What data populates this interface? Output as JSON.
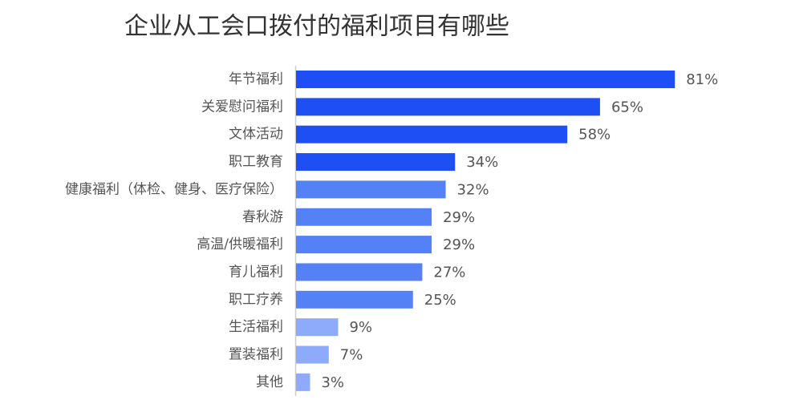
{
  "chart_data": {
    "type": "bar",
    "orientation": "horizontal",
    "title": "企业从工会口拨付的福利项目有哪些",
    "categories": [
      "年节福利",
      "关爱慰问福利",
      "文体活动",
      "职工教育",
      "健康福利（体检、健身、医疗保险）",
      "春秋游",
      "高温/供暖福利",
      "育儿福利",
      "职工疗养",
      "生活福利",
      "置装福利",
      "其他"
    ],
    "values": [
      81,
      65,
      58,
      34,
      32,
      29,
      29,
      27,
      25,
      9,
      7,
      3
    ],
    "value_labels": [
      "81%",
      "65%",
      "58%",
      "34%",
      "32%",
      "29%",
      "29%",
      "27%",
      "25%",
      "9%",
      "7%",
      "3%"
    ],
    "colors": [
      "#1e4ff5",
      "#1e4ff5",
      "#1e4ff5",
      "#1e4ff5",
      "#5581f7",
      "#5581f7",
      "#5581f7",
      "#5581f7",
      "#5581f7",
      "#8eaafb",
      "#8eaafb",
      "#8eaafb"
    ]
  }
}
